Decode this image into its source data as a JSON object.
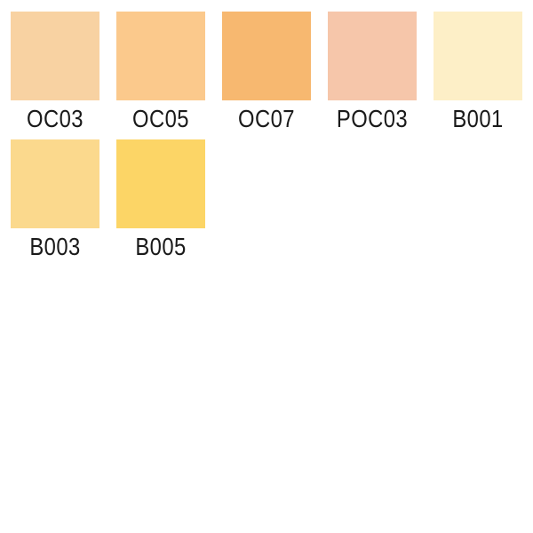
{
  "palette": {
    "background": "#FFFFFF",
    "label_color": "#1A1A1A",
    "swatches": [
      {
        "code": "OC03",
        "color": "#F8D2A2"
      },
      {
        "code": "OC05",
        "color": "#FBC98C"
      },
      {
        "code": "OC07",
        "color": "#F7B870"
      },
      {
        "code": "POC03",
        "color": "#F6C6AA"
      },
      {
        "code": "B001",
        "color": "#FDEFC7"
      },
      {
        "code": "B003",
        "color": "#FBD98D"
      },
      {
        "code": "B005",
        "color": "#FCD566"
      }
    ]
  }
}
